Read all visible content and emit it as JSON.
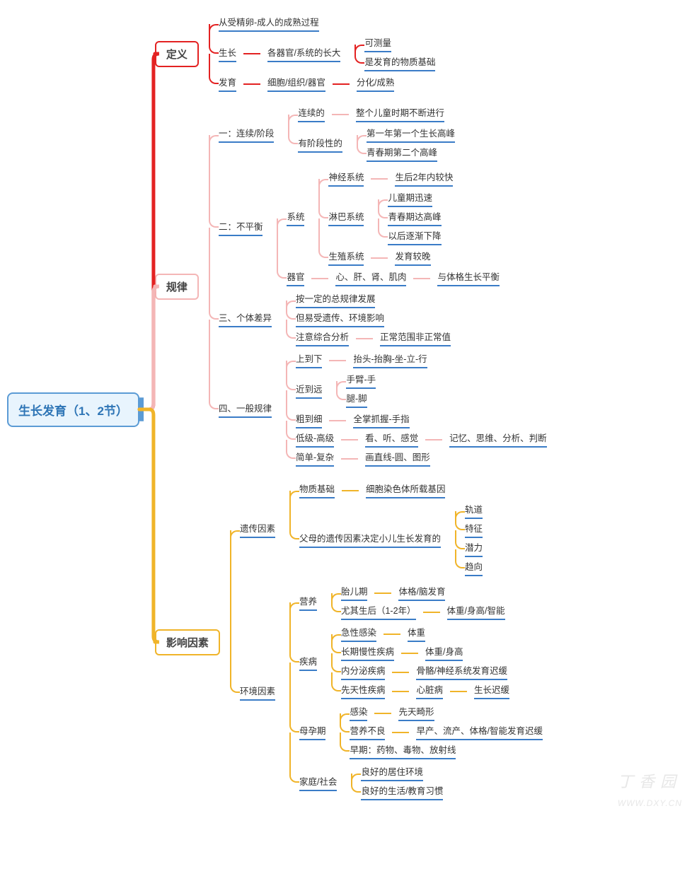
{
  "root": "生长发育（1、2节）",
  "colors": {
    "root_border": "#5b9bd5",
    "root_bg": "#e8f4fd",
    "root_text": "#2e75b6",
    "b1": "#e32222",
    "b2": "#f4b6b6",
    "b3": "#f0b429",
    "underline": "#3a7cc7",
    "underline_red": "#e32222"
  },
  "watermark": "丁 香 园",
  "watermark_sub": "WWW.DXY.CN",
  "fontsize": {
    "root": 17,
    "branch": 15,
    "leaf": 12.5
  },
  "branches": [
    {
      "label": "定义",
      "color": "#e32222",
      "children": [
        {
          "t": "从受精卵-成人的成熟过程"
        },
        {
          "t": "生长",
          "c": [
            {
              "t": "各器官/系统的长大",
              "c": [
                {
                  "t": "可测量"
                },
                {
                  "t": "是发育的物质基础"
                }
              ]
            }
          ]
        },
        {
          "t": "发育",
          "c": [
            {
              "t": "细胞/组织/器官",
              "c": [
                {
                  "t": "分化/成熟"
                }
              ]
            }
          ]
        }
      ]
    },
    {
      "label": "规律",
      "color": "#f4b6b6",
      "children": [
        {
          "t": "一：连续/阶段",
          "c": [
            {
              "t": "连续的",
              "c": [
                {
                  "t": "整个儿童时期不断进行"
                }
              ]
            },
            {
              "t": "有阶段性的",
              "c": [
                {
                  "t": "第一年第一个生长高峰"
                },
                {
                  "t": "青春期第二个高峰"
                }
              ]
            }
          ]
        },
        {
          "t": "二：不平衡",
          "c": [
            {
              "t": "系统",
              "c": [
                {
                  "t": "神经系统",
                  "c": [
                    {
                      "t": "生后2年内较快"
                    }
                  ]
                },
                {
                  "t": "淋巴系统",
                  "c": [
                    {
                      "t": "儿童期迅速"
                    },
                    {
                      "t": "青春期达高峰"
                    },
                    {
                      "t": "以后逐渐下降"
                    }
                  ]
                },
                {
                  "t": "生殖系统",
                  "c": [
                    {
                      "t": "发育较晚"
                    }
                  ]
                }
              ]
            },
            {
              "t": "器官",
              "c": [
                {
                  "t": "心、肝、肾、肌肉",
                  "c": [
                    {
                      "t": "与体格生长平衡"
                    }
                  ]
                }
              ]
            }
          ]
        },
        {
          "t": "三、个体差异",
          "c": [
            {
              "t": "按一定的总规律发展"
            },
            {
              "t": "但易受遗传、环境影响"
            },
            {
              "t": "注意综合分析",
              "c": [
                {
                  "t": "正常范围非正常值"
                }
              ]
            }
          ]
        },
        {
          "t": "四、一般规律",
          "c": [
            {
              "t": "上到下",
              "c": [
                {
                  "t": "抬头-抬胸-坐-立-行"
                }
              ]
            },
            {
              "t": "近到远",
              "c": [
                {
                  "t": "手臂-手"
                },
                {
                  "t": "腿-脚"
                }
              ]
            },
            {
              "t": "粗到细",
              "c": [
                {
                  "t": "全掌抓握-手指"
                }
              ]
            },
            {
              "t": "低级-高级",
              "c": [
                {
                  "t": "看、听、感觉",
                  "c": [
                    {
                      "t": "记忆、思维、分析、判断"
                    }
                  ]
                }
              ]
            },
            {
              "t": "简单-复杂",
              "c": [
                {
                  "t": "画直线-圆、图形"
                }
              ]
            }
          ]
        }
      ]
    },
    {
      "label": "影响因素",
      "color": "#f0b429",
      "children": [
        {
          "t": "遗传因素",
          "c": [
            {
              "t": "物质基础",
              "c": [
                {
                  "t": "细胞染色体所载基因"
                }
              ]
            },
            {
              "t": "父母的遗传因素决定小儿生长发育的",
              "c": [
                {
                  "t": "轨道"
                },
                {
                  "t": "特征"
                },
                {
                  "t": "潜力"
                },
                {
                  "t": "趋向"
                }
              ]
            }
          ]
        },
        {
          "t": "环境因素",
          "c": [
            {
              "t": "营养",
              "c": [
                {
                  "t": "胎儿期",
                  "c": [
                    {
                      "t": "体格/脑发育"
                    }
                  ]
                },
                {
                  "t": "尤其生后（1-2年）",
                  "c": [
                    {
                      "t": "体重/身高/智能"
                    }
                  ]
                }
              ]
            },
            {
              "t": "疾病",
              "c": [
                {
                  "t": "急性感染",
                  "c": [
                    {
                      "t": "体重"
                    }
                  ]
                },
                {
                  "t": "长期慢性疾病",
                  "c": [
                    {
                      "t": "体重/身高"
                    }
                  ]
                },
                {
                  "t": "内分泌疾病",
                  "c": [
                    {
                      "t": "骨骼/神经系统发育迟缓"
                    }
                  ]
                },
                {
                  "t": "先天性疾病",
                  "c": [
                    {
                      "t": "心脏病",
                      "c": [
                        {
                          "t": "生长迟缓"
                        }
                      ]
                    }
                  ]
                }
              ]
            },
            {
              "t": "母孕期",
              "c": [
                {
                  "t": "感染",
                  "c": [
                    {
                      "t": "先天畸形"
                    }
                  ]
                },
                {
                  "t": "营养不良",
                  "c": [
                    {
                      "t": "早产、流产、体格/智能发育迟缓"
                    }
                  ]
                },
                {
                  "t": "早期：药物、毒物、放射线"
                }
              ]
            },
            {
              "t": "家庭/社会",
              "c": [
                {
                  "t": "良好的居住环境"
                },
                {
                  "t": "良好的生活/教育习惯"
                }
              ]
            }
          ]
        }
      ]
    }
  ]
}
